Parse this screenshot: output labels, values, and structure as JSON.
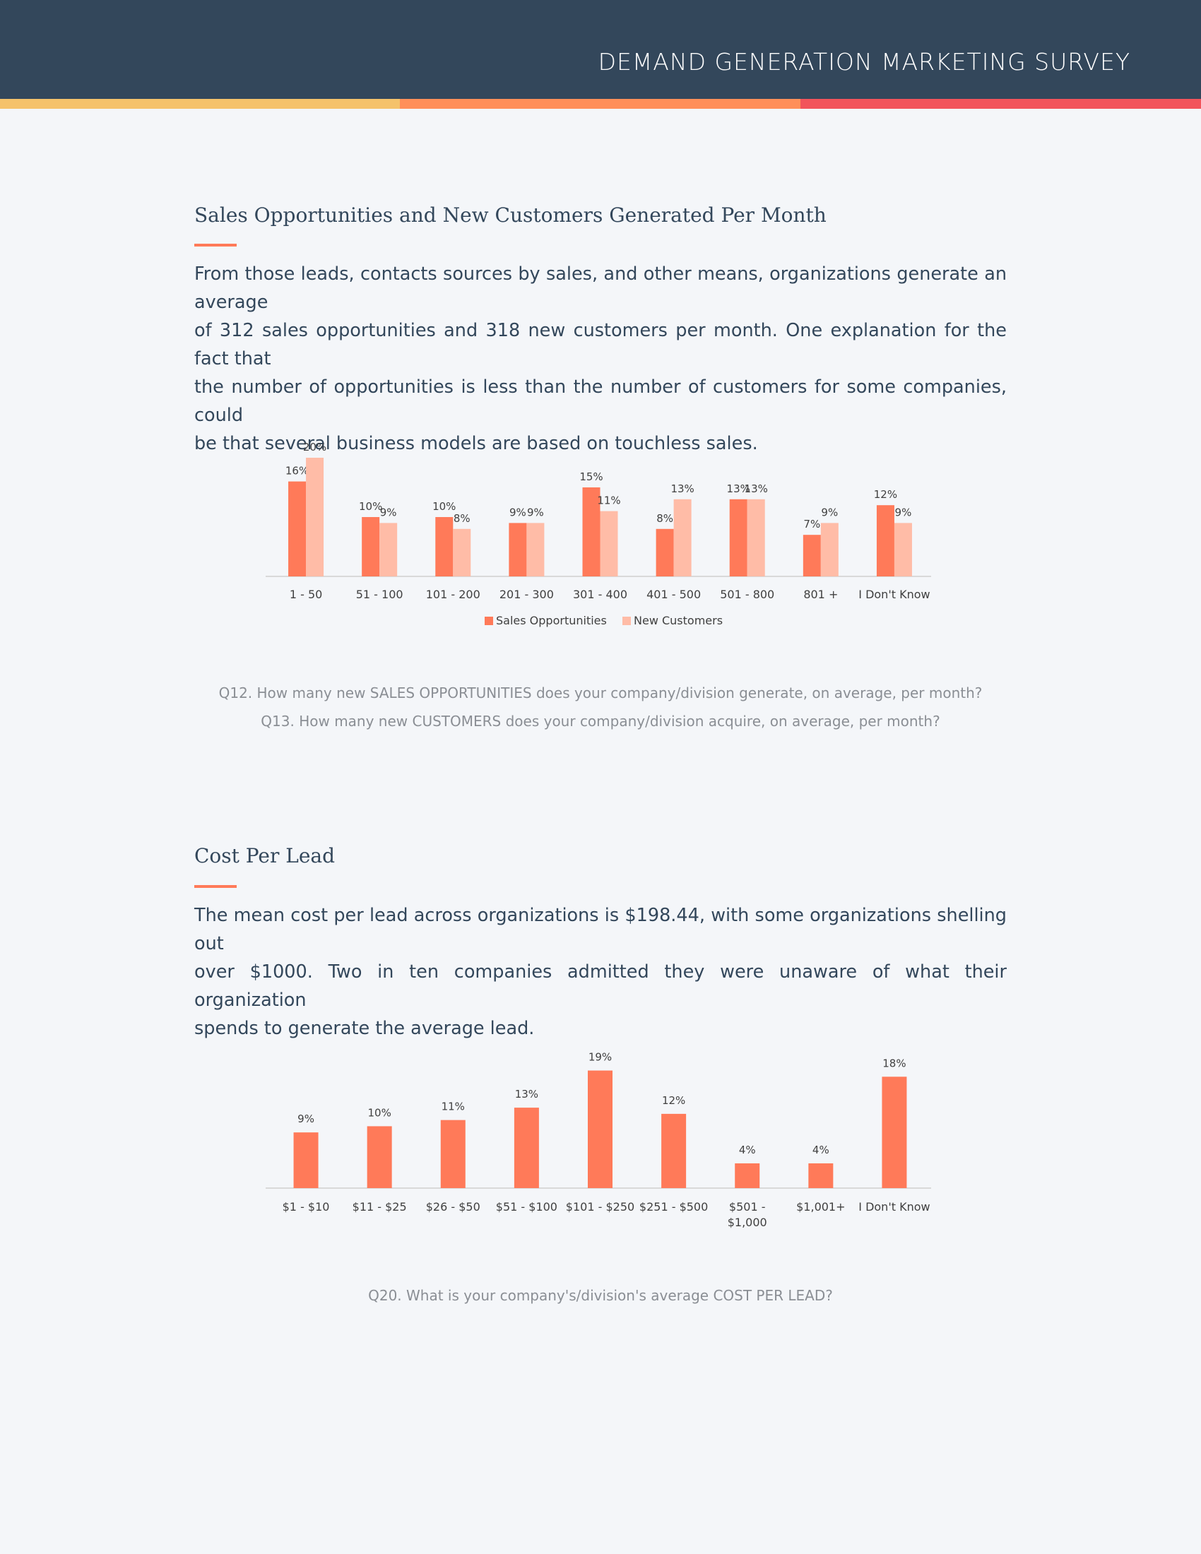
{
  "header": {
    "title": "DEMAND GENERATION MARKETING SURVEY",
    "stripe_colors": [
      "#f5c26b",
      "#ff8f59",
      "#f2545b"
    ]
  },
  "section1": {
    "title": "Sales Opportunities and New Customers Generated Per Month",
    "body": [
      "From those leads, contacts sources by sales, and other means, organizations generate an average",
      "of 312 sales opportunities and 318 new customers per month. One explanation for the fact that",
      "the number of opportunities is less than the number of customers for some companies, could",
      "be that several business models are based on touchless sales."
    ],
    "captions": [
      "Q12. How many new SALES OPPORTUNITIES does your company/division generate, on average, per month?",
      "Q13. How many new CUSTOMERS does your company/division acquire, on average, per month?"
    ]
  },
  "section2": {
    "title": "Cost Per Lead",
    "body": [
      "The mean cost per lead across organizations is $198.44, with some organizations shelling out",
      "over $1000. Two in ten companies admitted they were unaware of what their organization",
      "spends to generate the average lead."
    ],
    "captions": [
      "Q20. What is your company's/division's average COST PER LEAD?"
    ]
  },
  "chart_data": [
    {
      "type": "bar",
      "categories": [
        "1 - 50",
        "51 - 100",
        "101 - 200",
        "201 - 300",
        "301 - 400",
        "401 - 500",
        "501 - 800",
        "801 +",
        "I Don't Know"
      ],
      "series": [
        {
          "name": "Sales Opportunities",
          "color": "#ff7a59",
          "values": [
            16,
            10,
            10,
            9,
            15,
            8,
            13,
            7,
            12
          ],
          "labels": [
            "16%",
            "10%",
            "10%",
            "9%",
            "15%",
            "8%",
            "13%",
            "7%",
            "12%"
          ]
        },
        {
          "name": "New Customers",
          "color": "#ffbca7",
          "values": [
            20,
            9,
            8,
            9,
            11,
            13,
            13,
            9,
            9
          ],
          "labels": [
            "20%",
            "9%",
            "8%",
            "9%",
            "11%",
            "13%",
            "13%",
            "9%",
            "9%"
          ]
        }
      ],
      "unit": "%",
      "legend": "bottom",
      "grid": false,
      "ylim": [
        0,
        22
      ]
    },
    {
      "type": "bar",
      "categories": [
        "$1 - $10",
        "$11 - $25",
        "$26 - $50",
        "$51 - $100",
        "$101 - $250",
        "$251 - $500",
        "$501 - $1,000",
        "$1,001+",
        "I Don't Know"
      ],
      "series": [
        {
          "color": "#ff7a59",
          "values": [
            9,
            10,
            11,
            13,
            19,
            12,
            4,
            4,
            18
          ],
          "labels": [
            "9%",
            "10%",
            "11%",
            "13%",
            "19%",
            "12%",
            "4%",
            "4%",
            "18%"
          ]
        }
      ],
      "unit": "%",
      "legend": "none",
      "grid": false,
      "ylim": [
        0,
        21
      ]
    }
  ]
}
